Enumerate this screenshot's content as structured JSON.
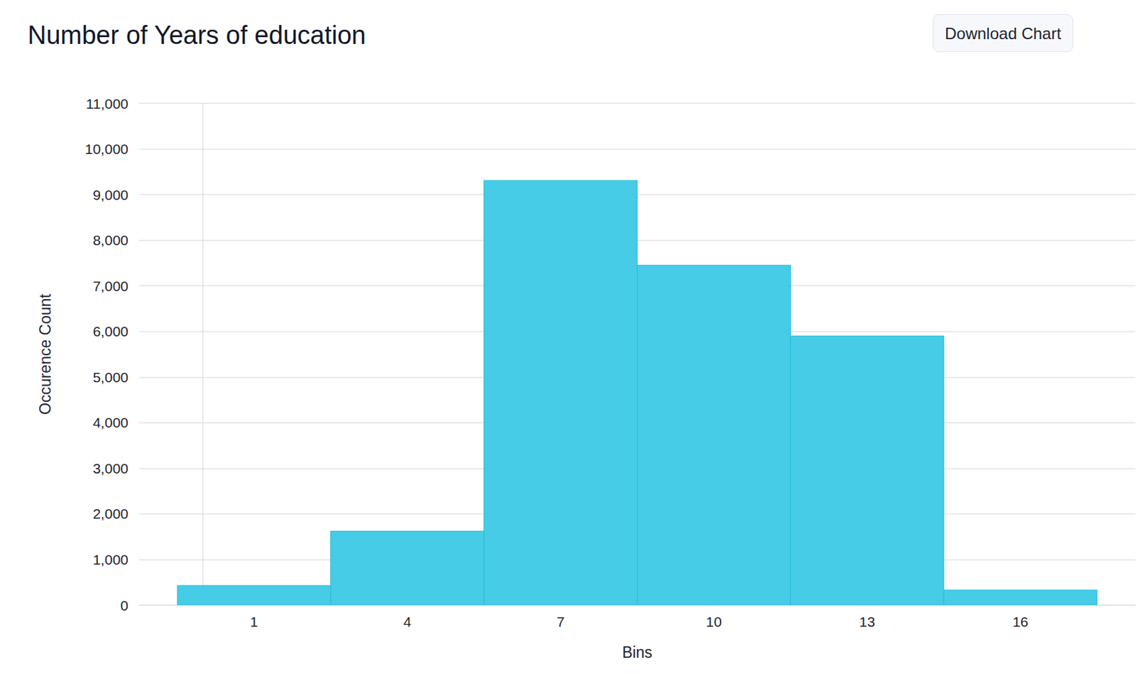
{
  "download_button": "Download Chart",
  "chart_data": {
    "type": "histogram",
    "title": "Number of Years of education",
    "x_label": "Bins",
    "y_label": "Occurence Count",
    "bins": [
      -0.5,
      2.5,
      5.5,
      8.5,
      11.5,
      14.5,
      17.5
    ],
    "values": [
      430,
      1620,
      9310,
      7450,
      5900,
      330
    ],
    "color": "#3cc9e5",
    "xlim": [
      -1.25,
      18.25
    ],
    "xticks": [
      1,
      4,
      7,
      10,
      13,
      16
    ],
    "ylim": [
      0,
      11000
    ],
    "yticks": [
      0,
      {
        "value": 1000,
        "label": "1,000"
      },
      {
        "value": 2000,
        "label": "2,000"
      },
      {
        "value": 3000,
        "label": "3,000"
      },
      {
        "value": 4000,
        "label": "4,000"
      },
      {
        "value": 5000,
        "label": "5,000"
      },
      {
        "value": 6000,
        "label": "6,000"
      },
      {
        "value": 7000,
        "label": "7,000"
      },
      {
        "value": 8000,
        "label": "8,000"
      },
      {
        "value": 9000,
        "label": "9,000"
      },
      {
        "value": 10000,
        "label": "10,000"
      },
      {
        "value": 11000,
        "label": "11,000"
      }
    ],
    "grid": true
  }
}
